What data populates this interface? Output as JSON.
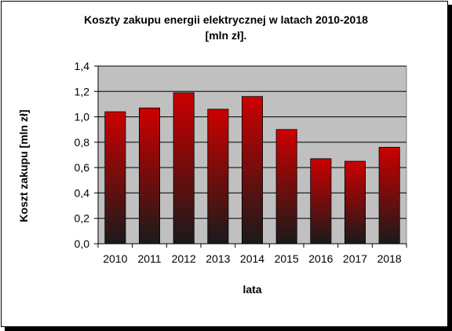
{
  "chart_data": {
    "type": "bar",
    "title_line1": "Koszty zakupu energii elektrycznej w latach 2010-2018",
    "title_line2": "[mln  zł].",
    "xlabel": "lata",
    "ylabel": "Koszt zakupu [mln zł]",
    "categories": [
      "2010",
      "2011",
      "2012",
      "2013",
      "2014",
      "2015",
      "2016",
      "2017",
      "2018"
    ],
    "values": [
      1.04,
      1.07,
      1.19,
      1.06,
      1.16,
      0.9,
      0.67,
      0.65,
      0.76
    ],
    "ylim": [
      0,
      1.4
    ],
    "yticks": [
      "0,0",
      "0,2",
      "0,4",
      "0,6",
      "0,8",
      "1,0",
      "1,2",
      "1,4"
    ],
    "grid": true,
    "plot_background": "#c0c0c0",
    "bar_color_top": "#cc0000",
    "bar_color_bottom": "#1a1a1a"
  }
}
